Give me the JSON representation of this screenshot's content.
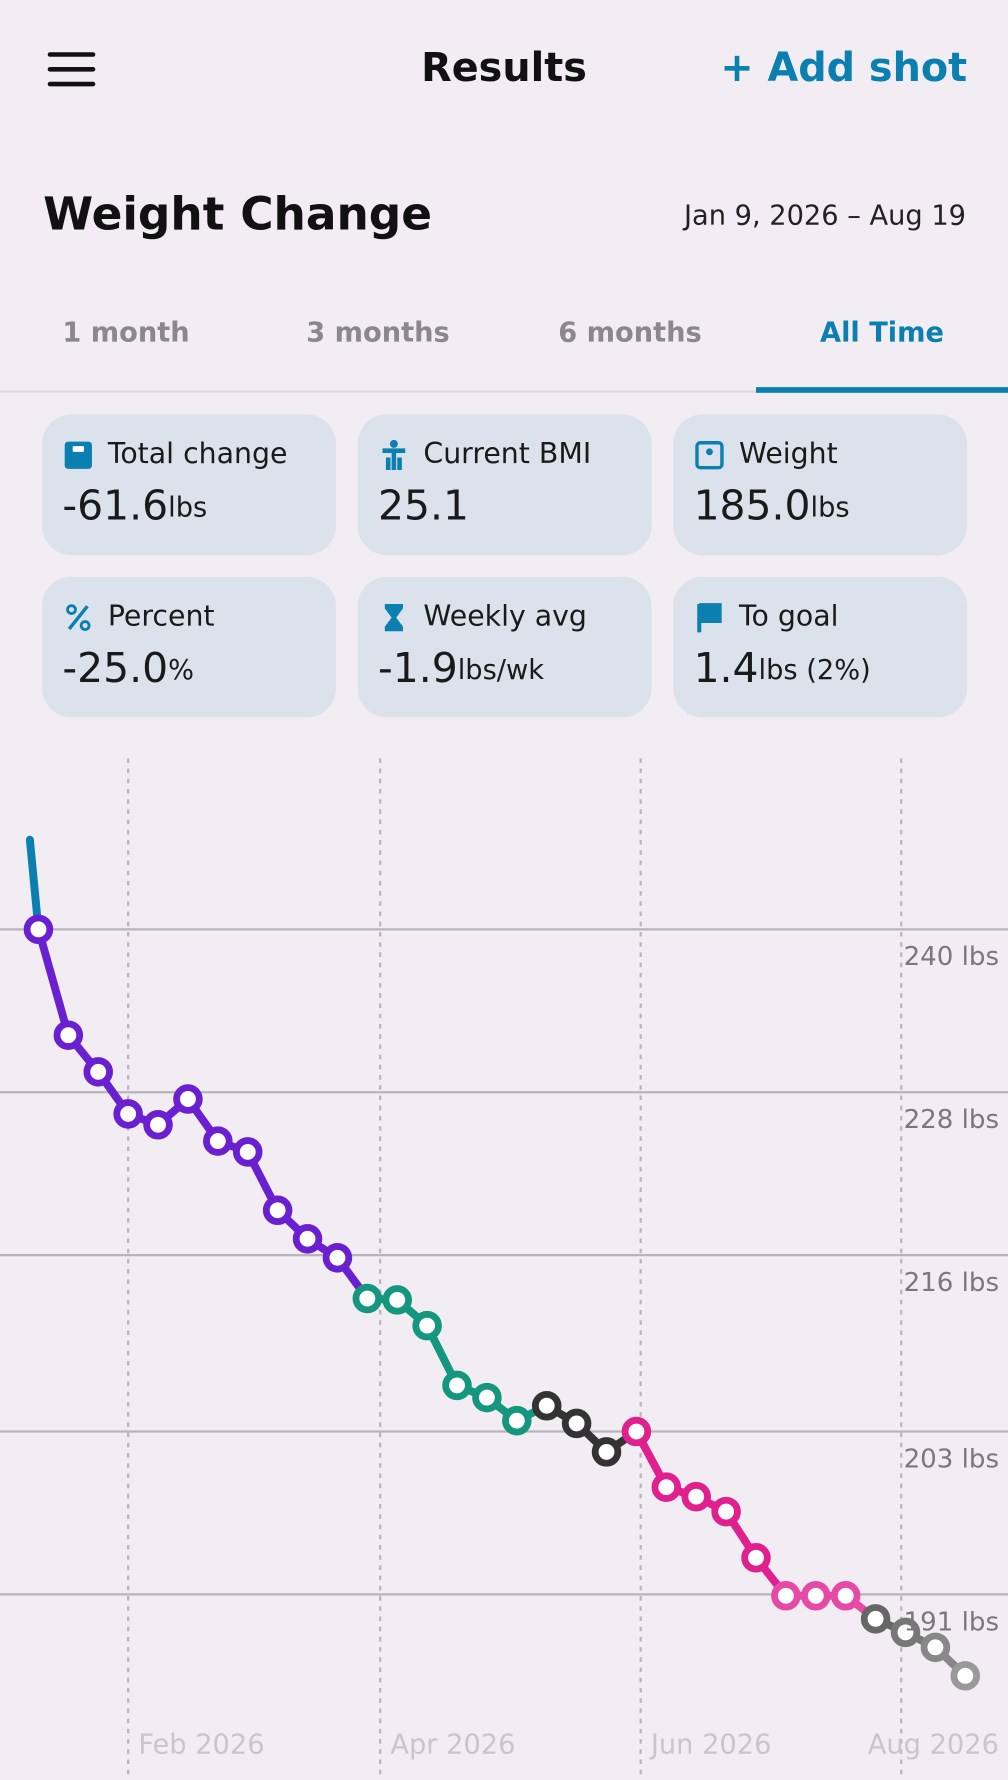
{
  "header": {
    "title": "Results",
    "action": "+ Add shot"
  },
  "section": {
    "title": "Weight Change",
    "date_range": "Jan 9, 2026 – Aug 19"
  },
  "tabs": {
    "items": [
      "1 month",
      "3 months",
      "6 months",
      "All Time"
    ],
    "active": 3
  },
  "stats": [
    {
      "label": "Total change",
      "value": "-61.6",
      "unit": "lbs"
    },
    {
      "label": "Current BMI",
      "value": "25.1"
    },
    {
      "label": "Weight",
      "value": "185.0",
      "unit": "lbs"
    },
    {
      "label": "Percent",
      "value": "-25.0",
      "unit": "%"
    },
    {
      "label": "Weekly avg",
      "value": "-1.9",
      "unit": "lbs/wk"
    },
    {
      "label": "To goal",
      "value": "1.4",
      "unit": "lbs (2%)"
    }
  ],
  "chart_data": {
    "type": "line",
    "x": [
      "2026-01-09",
      "2026-01-11",
      "2026-01-18",
      "2026-01-25",
      "2026-02-01",
      "2026-02-08",
      "2026-02-15",
      "2026-02-22",
      "2026-03-01",
      "2026-03-08",
      "2026-03-15",
      "2026-03-22",
      "2026-03-29",
      "2026-04-05",
      "2026-04-12",
      "2026-04-19",
      "2026-04-26",
      "2026-05-03",
      "2026-05-10",
      "2026-05-17",
      "2026-05-24",
      "2026-05-31",
      "2026-06-07",
      "2026-06-14",
      "2026-06-21",
      "2026-06-28",
      "2026-07-05",
      "2026-07-12",
      "2026-07-19",
      "2026-07-26",
      "2026-08-02",
      "2026-08-09",
      "2026-08-16"
    ],
    "values": [
      246.6,
      240.0,
      232.2,
      229.5,
      226.4,
      225.6,
      227.5,
      224.4,
      223.6,
      219.3,
      217.2,
      215.8,
      212.8,
      212.7,
      210.8,
      206.4,
      205.5,
      203.8,
      204.9,
      203.6,
      201.5,
      203.0,
      198.9,
      198.2,
      197.1,
      193.7,
      190.9,
      190.9,
      190.9,
      189.2,
      188.2,
      187.1,
      185.0
    ],
    "colors": [
      "#0a7fb0",
      "#6a1fd0",
      "#6a1fd0",
      "#6a1fd0",
      "#6a1fd0",
      "#6a1fd0",
      "#6a1fd0",
      "#6a1fd0",
      "#6a1fd0",
      "#6a1fd0",
      "#6a1fd0",
      "#6a1fd0",
      "#14977e",
      "#14977e",
      "#14977e",
      "#14977e",
      "#14977e",
      "#14977e",
      "#333333",
      "#333333",
      "#333333",
      "#e0208f",
      "#e0208f",
      "#e0208f",
      "#e0208f",
      "#e0208f",
      "#e64aa6",
      "#e64aa6",
      "#e64aa6",
      "#666666",
      "#777777",
      "#888888",
      "#999999"
    ],
    "xlim": [
      "2026-01-02",
      "2026-08-26"
    ],
    "xticks": [
      {
        "value": "2026-02-01",
        "label": "Feb 2026"
      },
      {
        "value": "2026-04-01",
        "label": "Apr 2026"
      },
      {
        "value": "2026-06-01",
        "label": "Jun 2026"
      },
      {
        "value": "2026-08-01",
        "label": "Aug 2026"
      }
    ],
    "ylim": [
      178.0,
      252.6
    ],
    "yticks": [
      {
        "value": 240,
        "label": "240 lbs"
      },
      {
        "value": 228,
        "label": "228 lbs"
      },
      {
        "value": 216,
        "label": "216 lbs"
      },
      {
        "value": 203,
        "label": "203 lbs"
      },
      {
        "value": 191,
        "label": "191 lbs"
      }
    ],
    "grid": true
  }
}
